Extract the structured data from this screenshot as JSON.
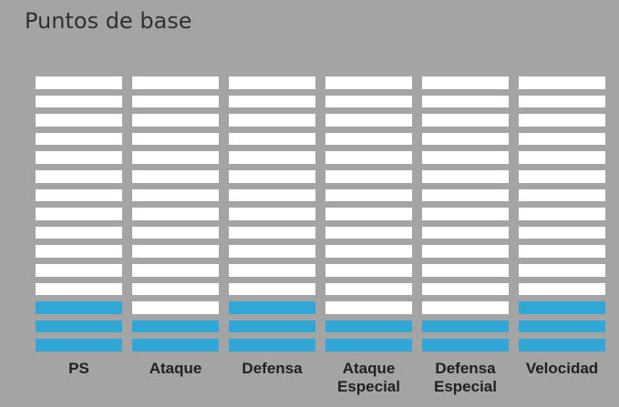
{
  "title": "Puntos de base",
  "segments_per_stat": 15,
  "colors": {
    "background": "#a4a4a4",
    "empty_segment": "#ffffff",
    "filled_segment": "#30a7d7",
    "label": "#212121"
  },
  "stats": [
    {
      "label": "PS",
      "value": 3
    },
    {
      "label": "Ataque",
      "value": 2
    },
    {
      "label": "Defensa",
      "value": 3
    },
    {
      "label": "Ataque\nEspecial",
      "value": 2
    },
    {
      "label": "Defensa\nEspecial",
      "value": 2
    },
    {
      "label": "Velocidad",
      "value": 3
    }
  ]
}
